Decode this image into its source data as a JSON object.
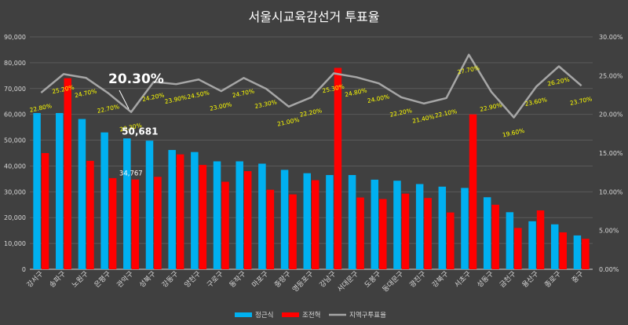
{
  "colors": {
    "background": "#404040",
    "grid": "#5a5a5a",
    "series1": "#00b0f0",
    "series2": "#ff0000",
    "line": "#a6a6a6",
    "pctLabel": "#ffff00",
    "text": "#ffffff",
    "axis": "#d9d9d9"
  },
  "chart_data": {
    "type": "bar",
    "title": "서울시교육감선거 투표율",
    "categories": [
      "강서구",
      "송파구",
      "노원구",
      "은평구",
      "관악구",
      "성북구",
      "강동구",
      "양천구",
      "구로구",
      "동작구",
      "마포구",
      "중랑구",
      "영등포구",
      "강남구",
      "서대문구",
      "도봉구",
      "동대문구",
      "광진구",
      "강북구",
      "서초구",
      "성동구",
      "금천구",
      "용산구",
      "종로구",
      "중구"
    ],
    "series": [
      {
        "name": "정근식",
        "values": [
          60500,
          60500,
          58200,
          53000,
          50681,
          49800,
          46200,
          45400,
          41800,
          41800,
          40900,
          38500,
          37200,
          36500,
          36500,
          34700,
          34300,
          33000,
          32000,
          31500,
          27900,
          22100,
          18600,
          17400,
          13100
        ]
      },
      {
        "name": "조전혁",
        "values": [
          45000,
          74000,
          42000,
          35300,
          34767,
          35800,
          44500,
          40400,
          33900,
          38000,
          30800,
          29000,
          34500,
          78000,
          27800,
          27200,
          29300,
          27600,
          22000,
          60000,
          25000,
          16000,
          22800,
          14300,
          11800
        ]
      }
    ],
    "line": {
      "name": "지역구투표율",
      "values": [
        22.8,
        25.2,
        24.7,
        22.7,
        20.3,
        24.2,
        23.9,
        24.5,
        23.0,
        24.7,
        23.3,
        21.0,
        22.2,
        25.3,
        24.8,
        24.0,
        22.2,
        21.4,
        22.1,
        27.7,
        22.9,
        19.6,
        23.6,
        26.2,
        23.7
      ],
      "labels": [
        "22.80%",
        "25.20%",
        "24.70%",
        "22.70%",
        "20.30%",
        "24.20%",
        "23.90%",
        "24.50%",
        "23.00%",
        "24.70%",
        "23.30%",
        "21.00%",
        "22.20%",
        "25.30%",
        "24.80%",
        "24.00%",
        "22.20%",
        "21.40%",
        "22.10%",
        "27.70%",
        "22.90%",
        "19.60%",
        "23.60%",
        "26.20%",
        "23.70%"
      ]
    },
    "y_left": {
      "min": 0,
      "max": 90000,
      "ticks": [
        "0",
        "10,000",
        "20,000",
        "30,000",
        "40,000",
        "50,000",
        "60,000",
        "70,000",
        "80,000",
        "90,000"
      ]
    },
    "y_right": {
      "min": 0,
      "max": 30,
      "ticks": [
        "0.00%",
        "5.00%",
        "10.00%",
        "15.00%",
        "20.00%",
        "25.00%",
        "30.00%"
      ]
    },
    "callouts": {
      "pct": "20.30%",
      "value1": "50,681",
      "value2": "34,767"
    },
    "grid": true,
    "legend": "bottom"
  }
}
